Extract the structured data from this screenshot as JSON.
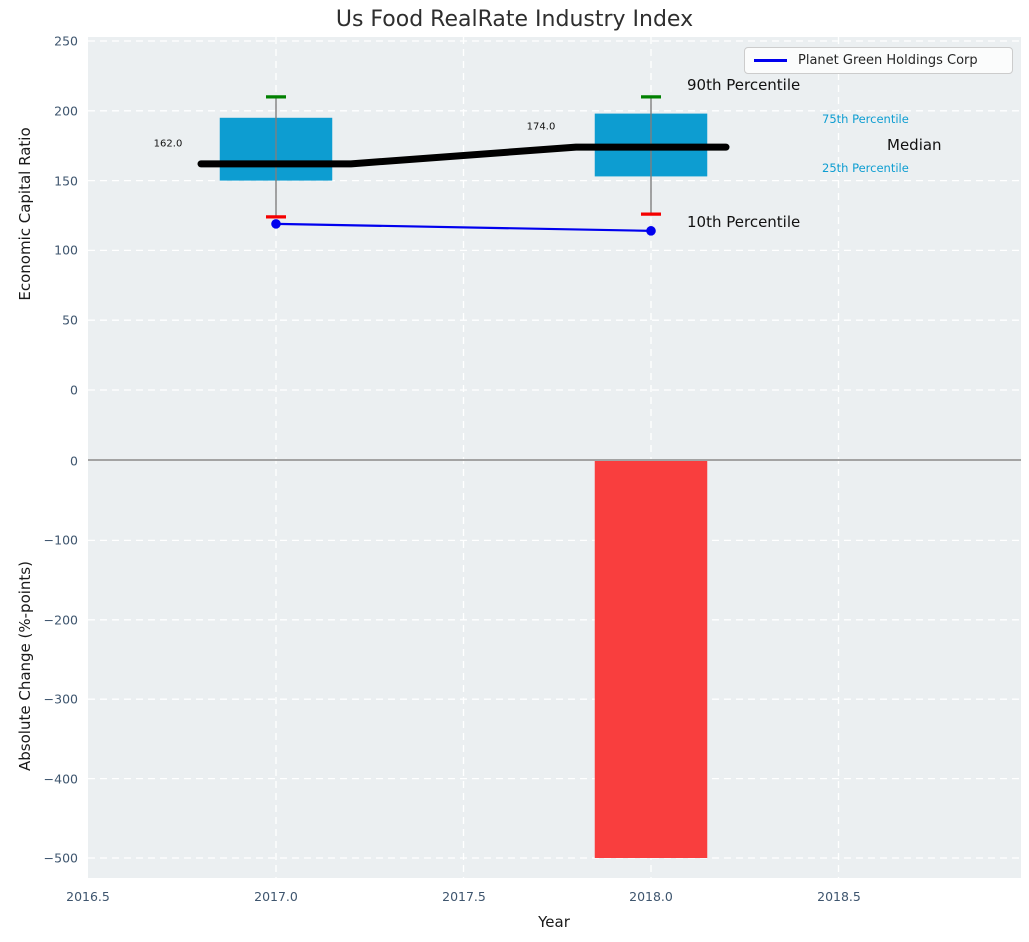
{
  "figure": {
    "title": "Us Food RealRate Industry Index",
    "background": "#ffffff",
    "axes_background": "#ebeff1",
    "grid_color": "#ffffff"
  },
  "legend": {
    "position": "upper right",
    "items": [
      {
        "label": "Planet Green Holdings Corp",
        "color": "#0000ee"
      }
    ]
  },
  "chart_data": [
    {
      "type": "box",
      "title": "Us Food RealRate Industry Index",
      "ylabel": "Economic Capital Ratio",
      "xlabel": "",
      "xlim": [
        2016.5,
        2018.99
      ],
      "ylim": [
        -50,
        253
      ],
      "grid": true,
      "yticks": [
        250,
        200,
        150,
        100,
        50,
        0
      ],
      "ytick_labels": [
        "250",
        "200",
        "150",
        "100",
        "50",
        "0"
      ],
      "categories": [
        2017,
        2018
      ],
      "box_width": 0.3,
      "box_color": "#0d9dd1",
      "whisker_color": "#7f7f7f",
      "cap_colors": {
        "p90": "#008000",
        "p10": "#f40000"
      },
      "boxes": [
        {
          "year": 2017,
          "p90": 210,
          "p75": 195,
          "median": 162,
          "p25": 150,
          "p10": 124
        },
        {
          "year": 2018,
          "p90": 210,
          "p75": 198,
          "median": 174,
          "p25": 153,
          "p10": 126
        }
      ],
      "median_line": {
        "color": "#000000",
        "x": [
          2016.8,
          2017.2,
          2017.8,
          2018.2
        ],
        "y": [
          162,
          162,
          174,
          174
        ]
      },
      "median_value_labels": [
        "162.0",
        "174.0"
      ],
      "series": [
        {
          "name": "Planet Green Holdings Corp",
          "color": "#0000ee",
          "marker": "circle",
          "x": [
            2017,
            2018
          ],
          "y": [
            119,
            114
          ]
        }
      ],
      "percentile_labels": {
        "p90": "90th Percentile",
        "p75": "75th Percentile",
        "median": "Median",
        "p25": "25th Percentile",
        "p10": "10th Percentile"
      }
    },
    {
      "type": "bar",
      "ylabel": "Absolute Change (%-points)",
      "xlabel": "Year",
      "xlim": [
        2016.5,
        2018.99
      ],
      "ylim": [
        -525,
        0
      ],
      "grid": true,
      "xticks": [
        2016.5,
        2017.0,
        2017.5,
        2018.0,
        2018.5
      ],
      "xtick_labels": [
        "2016.5",
        "2017.0",
        "2017.5",
        "2018.0",
        "2018.5"
      ],
      "yticks": [
        0,
        -100,
        -200,
        -300,
        -400,
        -500
      ],
      "ytick_labels": [
        "0",
        "−100",
        "−200",
        "−300",
        "−400",
        "−500"
      ],
      "x": [
        2018
      ],
      "values": [
        -500
      ],
      "bar_width": 0.3,
      "bar_color": "#f93e3e",
      "zero_line_color": "#a3a3a3"
    }
  ]
}
